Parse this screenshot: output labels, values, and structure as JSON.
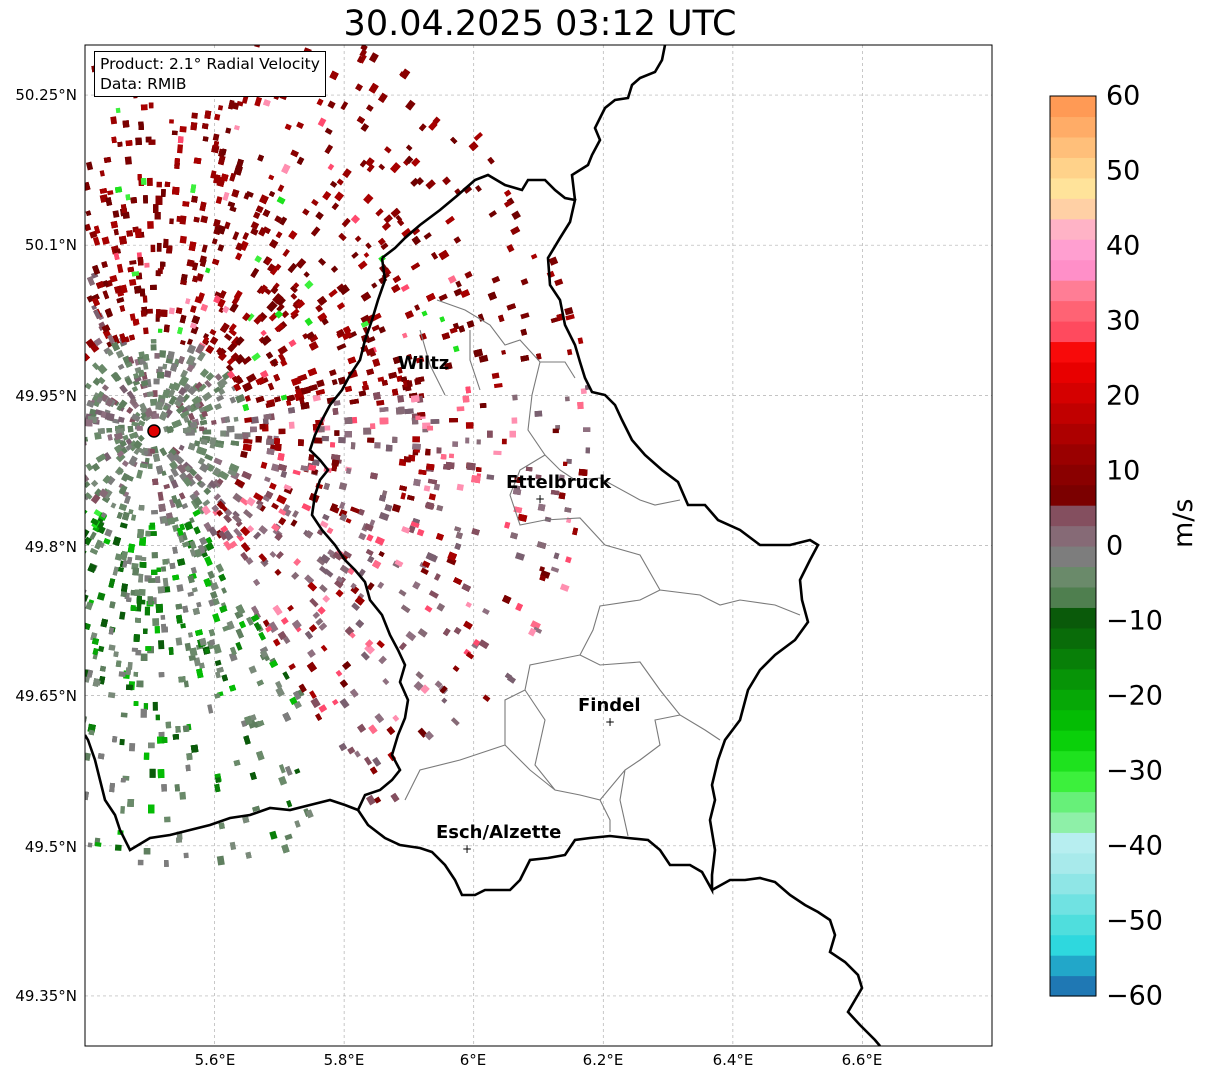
{
  "title": "30.04.2025 03:12 UTC",
  "info": {
    "product": "Product: 2.1° Radial Velocity",
    "data": "Data: RMIB"
  },
  "latitude_ticks": [
    "50.25°N",
    "50.1°N",
    "49.95°N",
    "49.8°N",
    "49.65°N",
    "49.5°N",
    "49.35°N"
  ],
  "longitude_ticks": [
    "5.6°E",
    "5.8°E",
    "6°E",
    "6.2°E",
    "6.4°E",
    "6.6°E"
  ],
  "cities": [
    {
      "name": "Wiltz"
    },
    {
      "name": "Ettelbruck"
    },
    {
      "name": "Findel"
    },
    {
      "name": "Esch/Alzette"
    }
  ],
  "colorbar": {
    "unit": "m/s",
    "ticks": [
      "60",
      "50",
      "40",
      "30",
      "20",
      "10",
      "0",
      "−10",
      "−20",
      "−30",
      "−40",
      "−50",
      "−60"
    ],
    "range": [
      -60,
      60
    ],
    "colors": [
      "#1f78b4",
      "#22a7c9",
      "#2ed8de",
      "#4fdedd",
      "#70e2e2",
      "#8fe6e6",
      "#a8eaeb",
      "#b7eef0",
      "#8ef0a8",
      "#67f079",
      "#3cf03c",
      "#1ee21e",
      "#0ad00a",
      "#04bc04",
      "#06a806",
      "#079407",
      "#087f08",
      "#096c09",
      "#0a5a0a",
      "#4f7f4f",
      "#6a8a6a",
      "#7d7d7d",
      "#866a76",
      "#844f5f",
      "#7b0000",
      "#8a0000",
      "#9a0000",
      "#ad0000",
      "#c10000",
      "#d50000",
      "#e80000",
      "#f80a0a",
      "#ff4a5e",
      "#ff6374",
      "#ff7d95",
      "#ff8fc8",
      "#ff9fd0",
      "#ffb3c6",
      "#ffd0a5",
      "#ffe39a",
      "#ffd28a",
      "#ffbf7a",
      "#ffac67",
      "#ff9a55"
    ],
    "series": "radial velocity"
  },
  "radar_site": {
    "lon": 5.505,
    "lat": 49.915
  },
  "map_extent": {
    "lon": [
      5.4,
      6.8
    ],
    "lat": [
      49.3,
      50.3
    ]
  }
}
